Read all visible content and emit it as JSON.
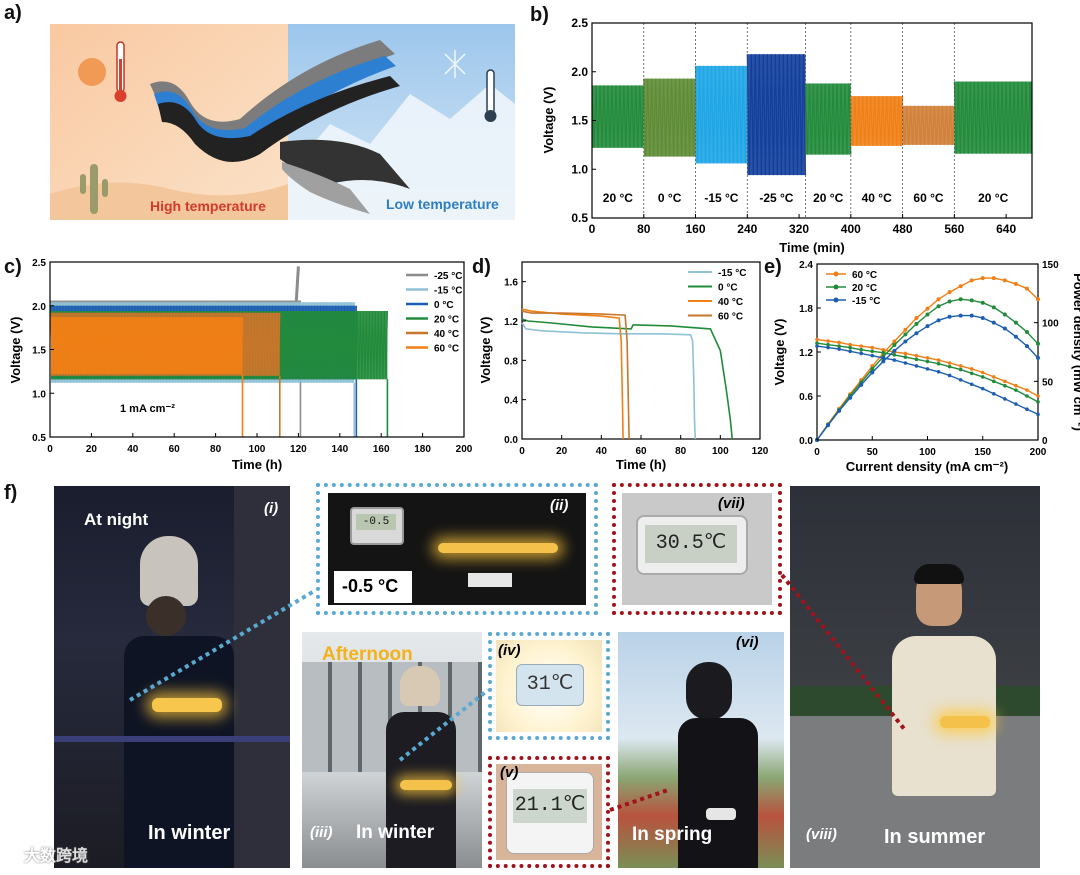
{
  "panel_labels": {
    "a": "a)",
    "b": "b)",
    "c": "c)",
    "d": "d)",
    "e": "e)",
    "f": "f)"
  },
  "colors": {
    "m25": "#8c8c8c",
    "m15": "#8fc1d6",
    "c0": "#1c5fb0",
    "c20": "#228b3b",
    "c40": "#f07f16",
    "c60": "#c8762a",
    "blue_light": "#1ea6e6",
    "blue_dark": "#123f9c",
    "box_blue": "#5aa9d1",
    "box_red": "#a0131d"
  },
  "panel_a": {
    "high_label": "High temperature",
    "low_label": "Low temperature"
  },
  "chart_data": [
    {
      "id": "b",
      "type": "area",
      "xlabel": "Time (min)",
      "ylabel": "Voltage (V)",
      "xlim": [
        0,
        680
      ],
      "ylim": [
        0.5,
        2.5
      ],
      "xticks": [
        0,
        80,
        160,
        240,
        320,
        400,
        480,
        560,
        640
      ],
      "yticks": [
        0.5,
        1.0,
        1.5,
        2.0,
        2.5
      ],
      "segments": [
        {
          "label": "20 °C",
          "x0": 0,
          "x1": 80,
          "low": 1.22,
          "high": 1.86,
          "color": "#228b3b"
        },
        {
          "label": "0 °C",
          "x0": 80,
          "x1": 160,
          "low": 1.13,
          "high": 1.93,
          "color": "#5e8c35"
        },
        {
          "label": "-15 °C",
          "x0": 160,
          "x1": 240,
          "low": 1.06,
          "high": 2.06,
          "color": "#1ea6e6"
        },
        {
          "label": "-25 °C",
          "x0": 240,
          "x1": 330,
          "low": 0.94,
          "high": 2.18,
          "color": "#123f9c"
        },
        {
          "label": "20 °C",
          "x0": 330,
          "x1": 400,
          "low": 1.15,
          "high": 1.88,
          "color": "#228b3b"
        },
        {
          "label": "40 °C",
          "x0": 400,
          "x1": 480,
          "low": 1.24,
          "high": 1.75,
          "color": "#f07f16"
        },
        {
          "label": "60 °C",
          "x0": 480,
          "x1": 560,
          "low": 1.25,
          "high": 1.65,
          "color": "#d08038"
        },
        {
          "label": "20 °C",
          "x0": 560,
          "x1": 680,
          "low": 1.16,
          "high": 1.9,
          "color": "#228b3b"
        }
      ]
    },
    {
      "id": "c",
      "type": "area",
      "xlabel": "Time (h)",
      "ylabel": "Voltage (V)",
      "xlim": [
        0,
        200
      ],
      "ylim": [
        0.5,
        2.5
      ],
      "xticks": [
        0,
        20,
        40,
        60,
        80,
        100,
        120,
        140,
        160,
        180,
        200
      ],
      "yticks": [
        0.5,
        1.0,
        1.5,
        2.0,
        2.5
      ],
      "annotation": "1 mA cm⁻²",
      "series": [
        {
          "name": "-25 °C",
          "end": 121,
          "low": 1.16,
          "high": 2.06,
          "color": "#8c8c8c"
        },
        {
          "name": "-15 °C",
          "end": 147,
          "low": 1.12,
          "high": 2.04,
          "color": "#8fc1d6"
        },
        {
          "name": "0 °C",
          "end": 148,
          "low": 1.16,
          "high": 2.0,
          "color": "#1c5fb0"
        },
        {
          "name": "20 °C",
          "end": 163,
          "low": 1.16,
          "high": 1.94,
          "color": "#228b3b"
        },
        {
          "name": "40 °C",
          "end": 111,
          "low": 1.2,
          "high": 1.92,
          "color": "#c8762a"
        },
        {
          "name": "60 °C",
          "end": 93,
          "low": 1.22,
          "high": 1.87,
          "color": "#f07f16"
        }
      ]
    },
    {
      "id": "d",
      "type": "line",
      "xlabel": "Time (h)",
      "ylabel": "Voltage (V)",
      "xlim": [
        0,
        120
      ],
      "ylim": [
        0,
        1.8
      ],
      "xticks": [
        0,
        20,
        40,
        60,
        80,
        100,
        120
      ],
      "yticks": [
        0.0,
        0.4,
        0.8,
        1.2,
        1.6
      ],
      "series": [
        {
          "name": "-15 °C",
          "color": "#8fc1d6",
          "x": [
            0,
            2,
            10,
            30,
            50,
            70,
            85,
            86,
            86.6,
            87,
            87.4
          ],
          "y": [
            1.18,
            1.12,
            1.1,
            1.08,
            1.07,
            1.07,
            1.06,
            1.0,
            0.6,
            0.2,
            0
          ]
        },
        {
          "name": "0 °C",
          "color": "#228b3b",
          "x": [
            0,
            3,
            15,
            35,
            55,
            56,
            75,
            95,
            100,
            103,
            105,
            106
          ],
          "y": [
            1.22,
            1.2,
            1.18,
            1.14,
            1.12,
            1.16,
            1.15,
            1.12,
            0.9,
            0.5,
            0.2,
            0
          ]
        },
        {
          "name": "40 °C",
          "color": "#f07f16",
          "x": [
            0,
            5,
            20,
            40,
            49,
            50,
            50.6,
            51
          ],
          "y": [
            1.32,
            1.3,
            1.27,
            1.25,
            1.23,
            1.0,
            0.4,
            0
          ]
        },
        {
          "name": "60 °C",
          "color": "#c8762a",
          "x": [
            0,
            5,
            20,
            40,
            52,
            53,
            53.6,
            54
          ],
          "y": [
            1.3,
            1.28,
            1.28,
            1.27,
            1.26,
            1.0,
            0.4,
            0
          ]
        }
      ]
    },
    {
      "id": "e",
      "type": "line",
      "xlabel": "Current density (mA cm⁻²)",
      "ylabel": "Voltage (V)",
      "y2label": "Power density (mW cm⁻²)",
      "xlim": [
        0,
        200
      ],
      "ylim": [
        0,
        2.4
      ],
      "y2lim": [
        0,
        150
      ],
      "xticks": [
        0,
        50,
        100,
        150,
        200
      ],
      "yticks": [
        0.0,
        0.6,
        1.2,
        1.8,
        2.4
      ],
      "y2ticks": [
        0,
        50,
        100,
        150
      ],
      "series": [
        {
          "name": "60 °C",
          "color": "#f07f16",
          "x": [
            0,
            10,
            20,
            30,
            40,
            50,
            60,
            70,
            80,
            90,
            100,
            110,
            120,
            130,
            140,
            150,
            160,
            170,
            180,
            190,
            200
          ],
          "voltage": [
            1.37,
            1.35,
            1.33,
            1.3,
            1.28,
            1.26,
            1.23,
            1.2,
            1.18,
            1.15,
            1.12,
            1.09,
            1.05,
            1.01,
            0.97,
            0.92,
            0.86,
            0.8,
            0.74,
            0.68,
            0.6
          ],
          "power": [
            0,
            13.5,
            26.6,
            39,
            51,
            63,
            74,
            84,
            94,
            104,
            112,
            120,
            126,
            131,
            136,
            138,
            138,
            136,
            133,
            129,
            120
          ]
        },
        {
          "name": "20 °C",
          "color": "#228b3b",
          "x": [
            0,
            10,
            20,
            30,
            40,
            50,
            60,
            70,
            80,
            90,
            100,
            110,
            120,
            130,
            140,
            150,
            160,
            170,
            180,
            190,
            200
          ],
          "voltage": [
            1.32,
            1.3,
            1.28,
            1.26,
            1.23,
            1.21,
            1.19,
            1.16,
            1.13,
            1.1,
            1.07,
            1.04,
            1.0,
            0.96,
            0.91,
            0.86,
            0.8,
            0.74,
            0.68,
            0.6,
            0.52
          ],
          "power": [
            0,
            13,
            25.6,
            37.8,
            49,
            60.5,
            71,
            81,
            90,
            99,
            107,
            114,
            118,
            120,
            119,
            117,
            113,
            107,
            100,
            92,
            82
          ]
        },
        {
          "name": "-15 °C",
          "color": "#1c5fb0",
          "x": [
            0,
            10,
            20,
            30,
            40,
            50,
            60,
            70,
            80,
            90,
            100,
            110,
            120,
            130,
            140,
            150,
            160,
            170,
            180,
            190,
            200
          ],
          "voltage": [
            1.28,
            1.26,
            1.24,
            1.21,
            1.18,
            1.15,
            1.12,
            1.09,
            1.05,
            1.01,
            0.97,
            0.93,
            0.88,
            0.82,
            0.76,
            0.7,
            0.63,
            0.56,
            0.49,
            0.42,
            0.35
          ],
          "power": [
            0,
            12.6,
            24.8,
            36,
            47,
            57.5,
            67,
            76,
            84,
            91,
            97,
            102,
            105,
            106,
            106,
            104,
            100,
            95,
            88,
            80,
            70
          ]
        }
      ]
    }
  ],
  "panel_f": {
    "i": {
      "roman": "(i)",
      "title": "At night",
      "caption": "In winter"
    },
    "ii": {
      "roman": "(ii)",
      "thermo": "-0.5",
      "temp_label": "-0.5 °C"
    },
    "iii": {
      "roman": "(iii)",
      "title": "Afternoon",
      "caption": "In winter"
    },
    "iv": {
      "roman": "(iv)",
      "thermo": "31℃"
    },
    "v": {
      "roman": "(v)",
      "thermo": "21.1℃"
    },
    "vi": {
      "roman": "(vi)",
      "caption": "In spring"
    },
    "vii": {
      "roman": "(vii)",
      "thermo": "30.5℃"
    },
    "viii": {
      "roman": "(viii)",
      "caption": "In summer"
    },
    "watermark": "大数跨境"
  }
}
